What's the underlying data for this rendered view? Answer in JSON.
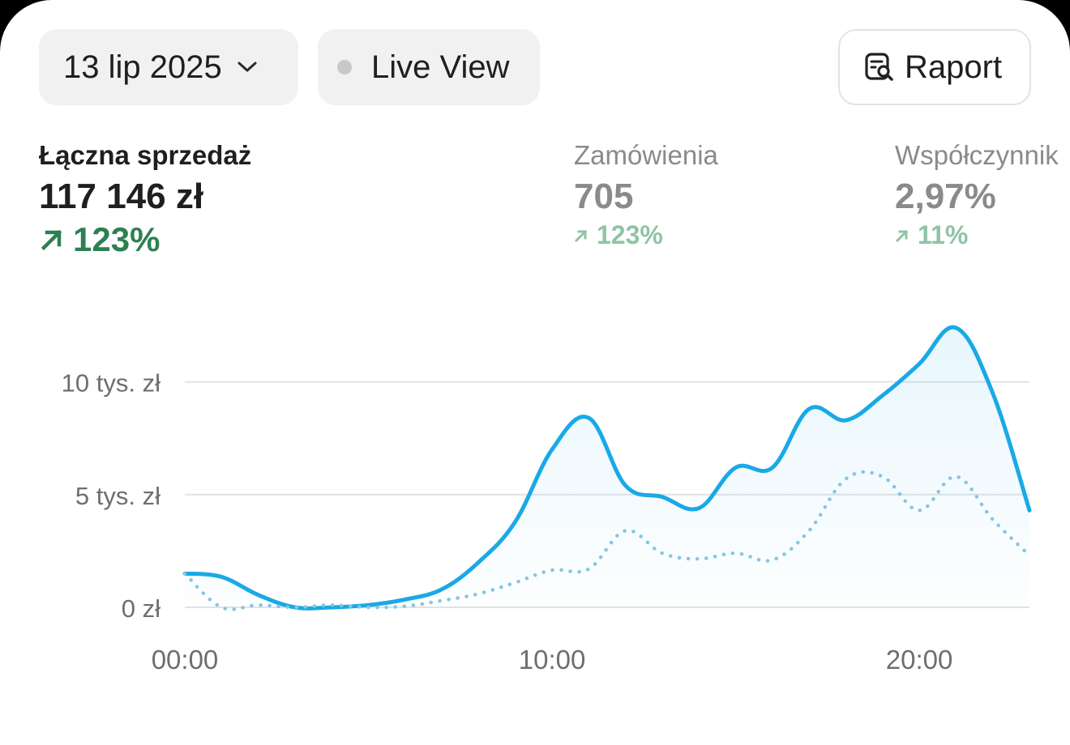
{
  "toolbar": {
    "date_label": "13 lip 2025",
    "live_label": "Live View",
    "report_label": "Raport"
  },
  "metrics": [
    {
      "label": "Łączna sprzedaż",
      "value": "117 146 zł",
      "change": "123%"
    },
    {
      "label": "Zamówienia",
      "value": "705",
      "change": "123%"
    },
    {
      "label": "Współczynnik",
      "value": "2,97%",
      "change": "11%"
    }
  ],
  "colors": {
    "primary_line": "#1aa9e6",
    "comparison_line": "#86c5e2",
    "positive": "#2e8050",
    "positive_muted": "#8fc4a5"
  },
  "chart_data": {
    "type": "area",
    "xlabel": "",
    "ylabel": "",
    "x_ticks": [
      "00:00",
      "10:00",
      "20:00"
    ],
    "y_ticks": [
      "0 zł",
      "5 tys. zł",
      "10 tys. zł"
    ],
    "y_tick_values": [
      0,
      5000,
      10000
    ],
    "xlim": [
      0,
      23
    ],
    "ylim": [
      0,
      12500
    ],
    "x": [
      0,
      1,
      2,
      3,
      4,
      5,
      6,
      7,
      8,
      9,
      10,
      11,
      12,
      13,
      14,
      15,
      16,
      17,
      18,
      19,
      20,
      21,
      22,
      23
    ],
    "series": [
      {
        "style": "solid",
        "values": [
          1500,
          1350,
          550,
          0,
          0,
          100,
          350,
          800,
          2000,
          3800,
          7000,
          8400,
          5400,
          4900,
          4400,
          6200,
          6200,
          8800,
          8300,
          9400,
          10800,
          12400,
          9500,
          4300
        ]
      },
      {
        "style": "dotted",
        "values": [
          1500,
          0,
          100,
          0,
          100,
          0,
          50,
          300,
          600,
          1100,
          1650,
          1700,
          3400,
          2400,
          2150,
          2400,
          2100,
          3400,
          5700,
          5800,
          4300,
          5800,
          3900,
          2300
        ]
      }
    ],
    "grid": true,
    "legend": "none"
  }
}
